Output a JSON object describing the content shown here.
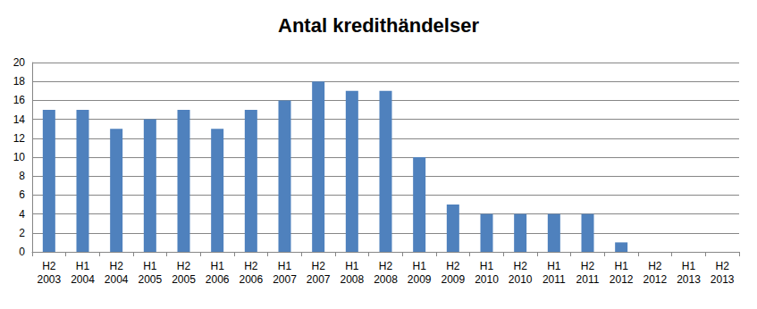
{
  "chart_data": {
    "type": "bar",
    "title": "Antal kredithändelser",
    "categories": [
      "H2\n2003",
      "H1\n2004",
      "H2\n2004",
      "H1\n2005",
      "H2\n2005",
      "H1\n2006",
      "H2\n2006",
      "H1\n2007",
      "H2\n2007",
      "H1\n2008",
      "H2\n2008",
      "H1\n2009",
      "H2\n2009",
      "H1\n2010",
      "H2\n2010",
      "H1\n2011",
      "H2\n2011",
      "H1\n2012",
      "H2\n2012",
      "H1\n2013",
      "H2\n2013"
    ],
    "values": [
      15,
      15,
      13,
      14,
      15,
      13,
      15,
      16,
      18,
      17,
      17,
      10,
      5,
      4,
      4,
      4,
      4,
      1,
      0,
      0,
      0
    ],
    "color": "#4f81bd",
    "ylim": [
      0,
      20
    ],
    "yticks": [
      0,
      2,
      4,
      6,
      8,
      10,
      12,
      14,
      16,
      18,
      20
    ],
    "grid": true
  }
}
